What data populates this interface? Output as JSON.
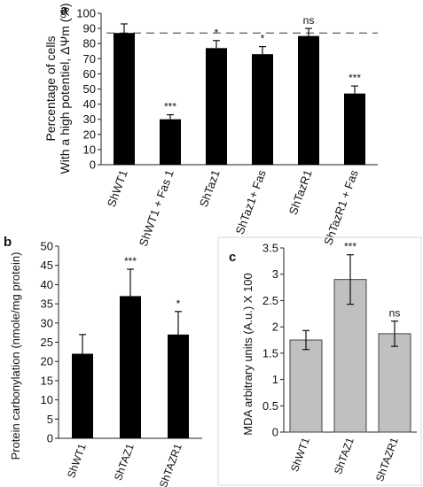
{
  "chart_data": [
    {
      "panel_label": "a",
      "type": "bar",
      "categories": [
        "ShWT1",
        "ShWT1 + Fas 1",
        "ShTaz1",
        "ShTaz1+ Fas",
        "ShTazR1",
        "ShTazR1 + Fas"
      ],
      "values": [
        87,
        30,
        77,
        73,
        85,
        47
      ],
      "errors": [
        6,
        3,
        5,
        5,
        5,
        5
      ],
      "annotations": [
        "",
        "***",
        "*",
        "*",
        "ns",
        "***"
      ],
      "ylabel_lines": [
        "Percentage of cells",
        "With a high potentiel, ΔΨm (%)"
      ],
      "ylim": [
        0,
        100
      ],
      "yticks": [
        0,
        10,
        20,
        30,
        40,
        50,
        60,
        70,
        80,
        90,
        100
      ],
      "reference_line": 87,
      "bar_color": "#000000",
      "grid": false
    },
    {
      "panel_label": "b",
      "type": "bar",
      "categories": [
        "ShWT1",
        "ShTAZ1",
        "ShTAZR1"
      ],
      "values": [
        22,
        37,
        27
      ],
      "errors": [
        5,
        7,
        6
      ],
      "annotations": [
        "",
        "***",
        "*"
      ],
      "ylabel": "Protein carbonylation (nmole/mg protein)",
      "ylim": [
        0,
        50
      ],
      "yticks": [
        0,
        5,
        10,
        15,
        20,
        25,
        30,
        35,
        40,
        45,
        50
      ],
      "bar_color": "#000000",
      "grid": false
    },
    {
      "panel_label": "c",
      "type": "bar",
      "categories": [
        "ShWT1",
        "ShTAZ1",
        "ShTAZR1"
      ],
      "values": [
        1.75,
        2.9,
        1.87
      ],
      "errors": [
        0.18,
        0.47,
        0.24
      ],
      "annotations": [
        "",
        "***",
        "ns"
      ],
      "ylabel": "MDA arbitrary units (A.u.) X 100",
      "ylim": [
        0,
        3.5
      ],
      "yticks": [
        "0",
        "0.5",
        "1",
        "1.5",
        "2",
        "2.5",
        "3",
        "3.5"
      ],
      "bar_color": "#c0c0c0",
      "grid": false
    }
  ]
}
